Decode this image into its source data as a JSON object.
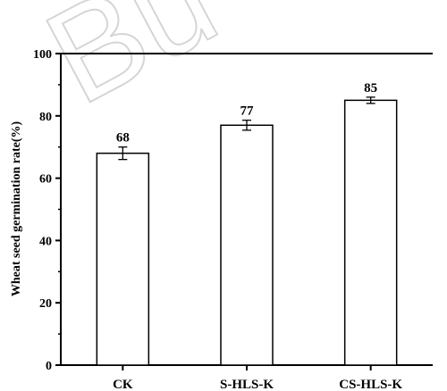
{
  "watermark": "Bu",
  "chart_data": {
    "type": "bar",
    "title": "",
    "xlabel": "",
    "ylabel": "Wheat seed germination rate(%)",
    "ylim": [
      0,
      100
    ],
    "yticks": [
      0,
      20,
      40,
      60,
      80,
      100
    ],
    "categories": [
      "CK",
      "S-HLS-K",
      "CS-HLS-K"
    ],
    "values": [
      68,
      77,
      85
    ],
    "errors": [
      2,
      1.6,
      1
    ],
    "data_labels": [
      "68",
      "77",
      "85"
    ],
    "bar_fill": "#ffffff",
    "bar_stroke": "#000000",
    "grid": false,
    "legend": "none"
  }
}
